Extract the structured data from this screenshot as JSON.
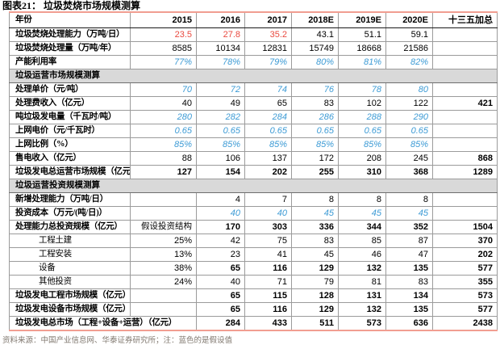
{
  "title": "图表21：  垃圾焚烧市场规模测算",
  "footnote": "资料来源：中国产业信息网、华泰证券研究所；注：蓝色的是假设值",
  "colors": {
    "assumption_blue": "#3d9bd5",
    "actual_red": "#e94a3f",
    "section_band_gray": "#d9d9d9",
    "accent_rule_salmon": "#f19e91",
    "grid_gray": "#9b9b9b"
  },
  "table": {
    "header": [
      "年份",
      "2015",
      "2016",
      "2017",
      "2018E",
      "2019E",
      "2020E",
      "十三五加总"
    ],
    "rows": [
      {
        "t": "d",
        "l": "垃圾焚烧处理能力（万吨/日）",
        "ls": "b",
        "c": [
          {
            "v": "23.5",
            "s": "r"
          },
          {
            "v": "27.8",
            "s": "r"
          },
          {
            "v": "35.2",
            "s": "r"
          },
          {
            "v": "43.1",
            "s": "n"
          },
          {
            "v": "51.1",
            "s": "n"
          },
          {
            "v": "59.1",
            "s": "n"
          },
          {
            "v": "",
            "s": "n"
          }
        ]
      },
      {
        "t": "d",
        "l": "垃圾焚烧处理量（万吨/年）",
        "ls": "b",
        "c": [
          {
            "v": "8585",
            "s": "n"
          },
          {
            "v": "10134",
            "s": "n"
          },
          {
            "v": "12831",
            "s": "n"
          },
          {
            "v": "15749",
            "s": "n"
          },
          {
            "v": "18668",
            "s": "n"
          },
          {
            "v": "21586",
            "s": "n"
          },
          {
            "v": "",
            "s": "n"
          }
        ]
      },
      {
        "t": "d",
        "l": "产能利用率",
        "ls": "b",
        "c": [
          {
            "v": "77%",
            "s": "a"
          },
          {
            "v": "78%",
            "s": "a"
          },
          {
            "v": "79%",
            "s": "a"
          },
          {
            "v": "80%",
            "s": "a"
          },
          {
            "v": "81%",
            "s": "a"
          },
          {
            "v": "82%",
            "s": "a"
          },
          {
            "v": "",
            "s": "n"
          }
        ]
      },
      {
        "t": "s",
        "l": "垃圾运营市场规模测算"
      },
      {
        "t": "d",
        "l": "处理单价（元/吨）",
        "ls": "b",
        "c": [
          {
            "v": "70",
            "s": "a"
          },
          {
            "v": "72",
            "s": "a"
          },
          {
            "v": "74",
            "s": "a"
          },
          {
            "v": "76",
            "s": "a"
          },
          {
            "v": "78",
            "s": "a"
          },
          {
            "v": "80",
            "s": "a"
          },
          {
            "v": "",
            "s": "n"
          }
        ]
      },
      {
        "t": "d",
        "l": "处理费收入（亿元）",
        "ls": "b",
        "c": [
          {
            "v": "40",
            "s": "n"
          },
          {
            "v": "49",
            "s": "n"
          },
          {
            "v": "65",
            "s": "n"
          },
          {
            "v": "83",
            "s": "n"
          },
          {
            "v": "102",
            "s": "n"
          },
          {
            "v": "122",
            "s": "n"
          },
          {
            "v": "421",
            "s": "b"
          }
        ]
      },
      {
        "t": "d",
        "l": "吨垃圾发电量（千瓦时/吨）",
        "ls": "b",
        "c": [
          {
            "v": "280",
            "s": "a"
          },
          {
            "v": "282",
            "s": "a"
          },
          {
            "v": "284",
            "s": "a"
          },
          {
            "v": "286",
            "s": "a"
          },
          {
            "v": "288",
            "s": "a"
          },
          {
            "v": "290",
            "s": "a"
          },
          {
            "v": "",
            "s": "n"
          }
        ]
      },
      {
        "t": "d",
        "l": "上网电价（元/千瓦时）",
        "ls": "b",
        "c": [
          {
            "v": "0.65",
            "s": "a"
          },
          {
            "v": "0.65",
            "s": "a"
          },
          {
            "v": "0.65",
            "s": "a"
          },
          {
            "v": "0.65",
            "s": "a"
          },
          {
            "v": "0.65",
            "s": "a"
          },
          {
            "v": "0.65",
            "s": "a"
          },
          {
            "v": "",
            "s": "n"
          }
        ]
      },
      {
        "t": "d",
        "l": "上网比例（%）",
        "ls": "b",
        "c": [
          {
            "v": "85%",
            "s": "a"
          },
          {
            "v": "85%",
            "s": "a"
          },
          {
            "v": "85%",
            "s": "a"
          },
          {
            "v": "85%",
            "s": "a"
          },
          {
            "v": "85%",
            "s": "a"
          },
          {
            "v": "85%",
            "s": "a"
          },
          {
            "v": "",
            "s": "n"
          }
        ]
      },
      {
        "t": "d",
        "l": "售电收入（亿元）",
        "ls": "b",
        "c": [
          {
            "v": "88",
            "s": "n"
          },
          {
            "v": "106",
            "s": "n"
          },
          {
            "v": "137",
            "s": "n"
          },
          {
            "v": "172",
            "s": "n"
          },
          {
            "v": "208",
            "s": "n"
          },
          {
            "v": "245",
            "s": "n"
          },
          {
            "v": "868",
            "s": "b"
          }
        ]
      },
      {
        "t": "d",
        "l": "垃圾发电总运营市场规模（亿元）",
        "ls": "b",
        "st": true,
        "c": [
          {
            "v": "127",
            "s": "b"
          },
          {
            "v": "154",
            "s": "b"
          },
          {
            "v": "202",
            "s": "b"
          },
          {
            "v": "255",
            "s": "b"
          },
          {
            "v": "310",
            "s": "b"
          },
          {
            "v": "368",
            "s": "b"
          },
          {
            "v": "1289",
            "s": "b"
          }
        ]
      },
      {
        "t": "s",
        "l": "垃圾运营投资规模测算"
      },
      {
        "t": "d",
        "l": "新增处理能力（万吨/日）",
        "ls": "b",
        "c": [
          {
            "v": "",
            "s": "n"
          },
          {
            "v": "4",
            "s": "n"
          },
          {
            "v": "7",
            "s": "n"
          },
          {
            "v": "8",
            "s": "n"
          },
          {
            "v": "8",
            "s": "n"
          },
          {
            "v": "8",
            "s": "n"
          },
          {
            "v": "",
            "s": "n"
          }
        ]
      },
      {
        "t": "d",
        "l": "投资成本（万元/(吨/日)）",
        "ls": "b",
        "c": [
          {
            "v": "",
            "s": "n"
          },
          {
            "v": "40",
            "s": "a"
          },
          {
            "v": "40",
            "s": "a"
          },
          {
            "v": "45",
            "s": "a"
          },
          {
            "v": "45",
            "s": "a"
          },
          {
            "v": "45",
            "s": "a"
          },
          {
            "v": "",
            "s": "n"
          }
        ]
      },
      {
        "t": "d",
        "l": "处理能力总投资规模（亿元）",
        "ls": "b",
        "c": [
          {
            "v": "假设投资结构",
            "s": "k"
          },
          {
            "v": "170",
            "s": "b"
          },
          {
            "v": "303",
            "s": "b"
          },
          {
            "v": "336",
            "s": "b"
          },
          {
            "v": "344",
            "s": "b"
          },
          {
            "v": "352",
            "s": "b"
          },
          {
            "v": "1504",
            "s": "b"
          }
        ]
      },
      {
        "t": "d",
        "l": "工程土建",
        "ls": "i",
        "c": [
          {
            "v": "25%",
            "s": "n"
          },
          {
            "v": "42",
            "s": "n"
          },
          {
            "v": "75",
            "s": "n"
          },
          {
            "v": "83",
            "s": "n"
          },
          {
            "v": "85",
            "s": "n"
          },
          {
            "v": "87",
            "s": "n"
          },
          {
            "v": "370",
            "s": "b"
          }
        ]
      },
      {
        "t": "d",
        "l": "工程安装",
        "ls": "i",
        "c": [
          {
            "v": "13%",
            "s": "n"
          },
          {
            "v": "23",
            "s": "n"
          },
          {
            "v": "41",
            "s": "n"
          },
          {
            "v": "45",
            "s": "n"
          },
          {
            "v": "46",
            "s": "n"
          },
          {
            "v": "47",
            "s": "n"
          },
          {
            "v": "202",
            "s": "b"
          }
        ]
      },
      {
        "t": "d",
        "l": "设备",
        "ls": "i",
        "c": [
          {
            "v": "38%",
            "s": "n"
          },
          {
            "v": "65",
            "s": "b"
          },
          {
            "v": "116",
            "s": "b"
          },
          {
            "v": "129",
            "s": "b"
          },
          {
            "v": "132",
            "s": "b"
          },
          {
            "v": "135",
            "s": "b"
          },
          {
            "v": "577",
            "s": "b"
          }
        ]
      },
      {
        "t": "d",
        "l": "其他投资",
        "ls": "i",
        "c": [
          {
            "v": "24%",
            "s": "n"
          },
          {
            "v": "40",
            "s": "n"
          },
          {
            "v": "71",
            "s": "n"
          },
          {
            "v": "79",
            "s": "n"
          },
          {
            "v": "81",
            "s": "n"
          },
          {
            "v": "83",
            "s": "n"
          },
          {
            "v": "355",
            "s": "b"
          }
        ]
      },
      {
        "t": "d",
        "l": "垃圾发电工程市场规模（亿元）",
        "ls": "b",
        "st": true,
        "c": [
          {
            "v": "",
            "s": "n"
          },
          {
            "v": "65",
            "s": "b"
          },
          {
            "v": "115",
            "s": "b"
          },
          {
            "v": "128",
            "s": "b"
          },
          {
            "v": "131",
            "s": "b"
          },
          {
            "v": "134",
            "s": "b"
          },
          {
            "v": "573",
            "s": "b"
          }
        ]
      },
      {
        "t": "d",
        "l": "垃圾发电设备市场规模（亿元）",
        "ls": "b",
        "c": [
          {
            "v": "",
            "s": "n"
          },
          {
            "v": "65",
            "s": "b"
          },
          {
            "v": "116",
            "s": "b"
          },
          {
            "v": "129",
            "s": "b"
          },
          {
            "v": "132",
            "s": "b"
          },
          {
            "v": "135",
            "s": "b"
          },
          {
            "v": "577",
            "s": "b"
          }
        ]
      },
      {
        "t": "d",
        "l": "垃圾发电总市场（工程+设备+运营）（亿元）",
        "ls": "b",
        "st": true,
        "m": true,
        "c": [
          {
            "v": "284",
            "s": "b"
          },
          {
            "v": "433",
            "s": "b"
          },
          {
            "v": "511",
            "s": "b"
          },
          {
            "v": "573",
            "s": "b"
          },
          {
            "v": "636",
            "s": "b"
          },
          {
            "v": "2438",
            "s": "b"
          }
        ]
      }
    ]
  }
}
